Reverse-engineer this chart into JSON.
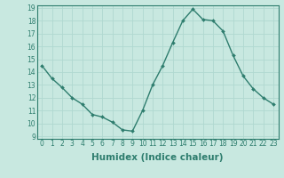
{
  "x": [
    0,
    1,
    2,
    3,
    4,
    5,
    6,
    7,
    8,
    9,
    10,
    11,
    12,
    13,
    14,
    15,
    16,
    17,
    18,
    19,
    20,
    21,
    22,
    23
  ],
  "y": [
    14.5,
    13.5,
    12.8,
    12.0,
    11.5,
    10.7,
    10.5,
    10.1,
    9.5,
    9.4,
    11.0,
    13.0,
    14.5,
    16.3,
    18.0,
    18.9,
    18.1,
    18.0,
    17.2,
    15.3,
    13.7,
    12.7,
    12.0,
    11.5
  ],
  "line_color": "#2e7d6e",
  "marker": "D",
  "marker_size": 2.0,
  "bg_color": "#c8e8e0",
  "grid_color": "#b0d8d0",
  "xlabel": "Humidex (Indice chaleur)",
  "ylim": [
    9,
    19
  ],
  "xlim": [
    -0.5,
    23.5
  ],
  "yticks": [
    9,
    10,
    11,
    12,
    13,
    14,
    15,
    16,
    17,
    18,
    19
  ],
  "xticks": [
    0,
    1,
    2,
    3,
    4,
    5,
    6,
    7,
    8,
    9,
    10,
    11,
    12,
    13,
    14,
    15,
    16,
    17,
    18,
    19,
    20,
    21,
    22,
    23
  ],
  "tick_label_fontsize": 5.5,
  "xlabel_fontsize": 7.5,
  "xlabel_fontweight": "bold",
  "linewidth": 1.0
}
